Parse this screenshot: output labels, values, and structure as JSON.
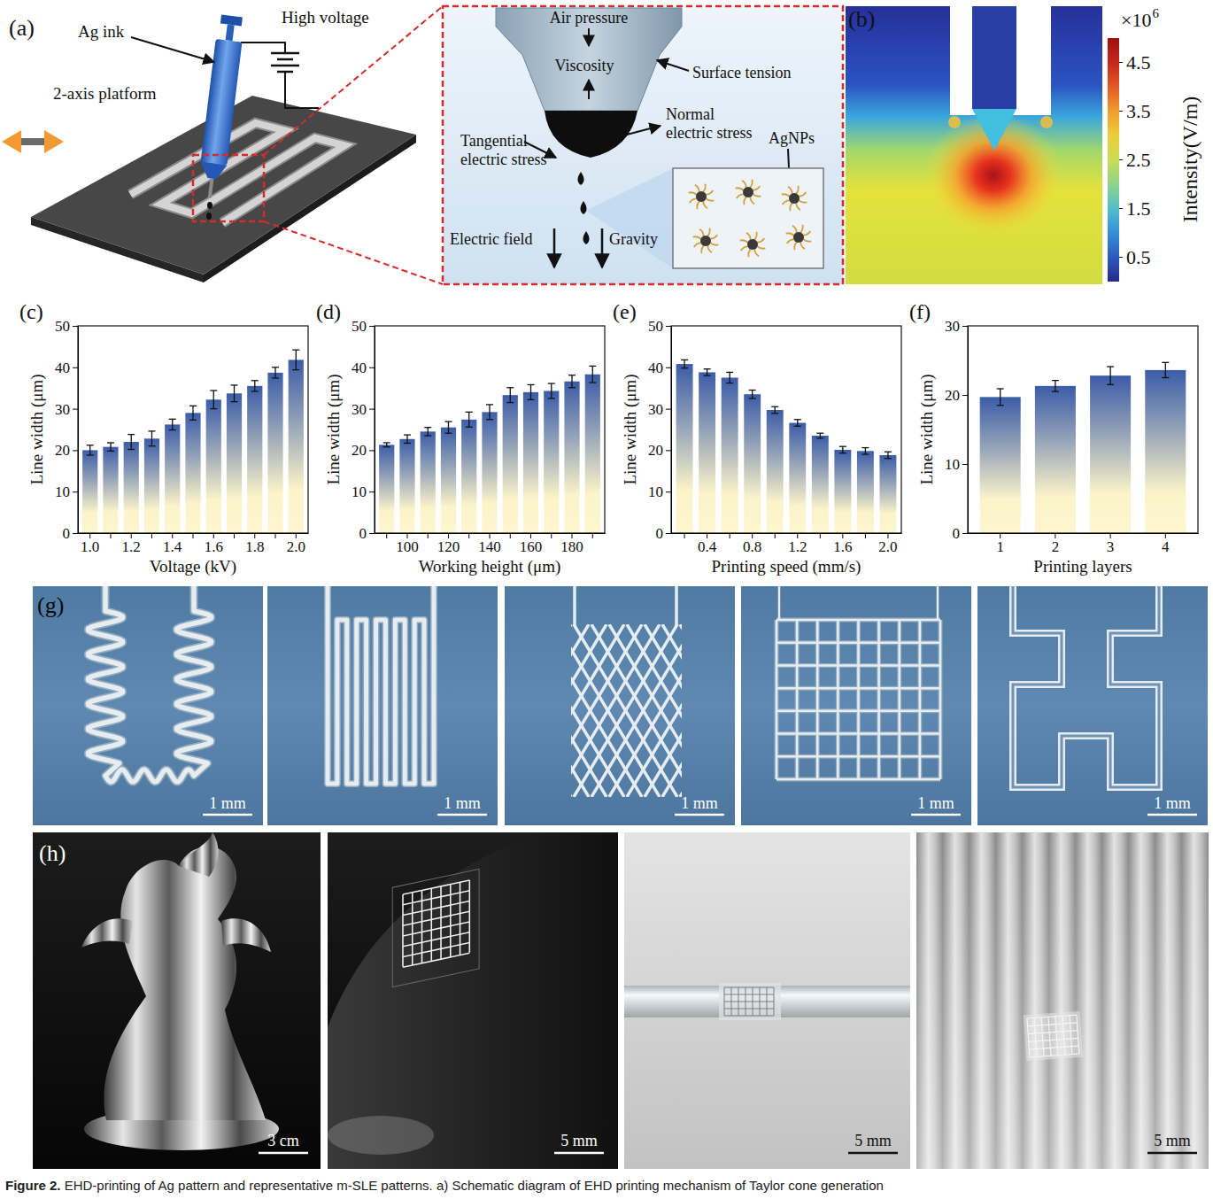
{
  "figure": {
    "caption": {
      "label": "Figure 2.",
      "text": "EHD-printing of Ag pattern and representative m-SLE patterns. a) Schematic diagram of EHD printing mechanism of Taylor cone generation"
    },
    "panels": {
      "a": {
        "letter": "(a)",
        "labels": {
          "ag_ink": "Ag ink",
          "high_voltage": "High voltage",
          "platform": "2-axis platform",
          "air_pressure": "Air pressure",
          "viscosity": "Viscosity",
          "surface_tension": "Surface tension",
          "normal_stress": "Normal electric stress",
          "tangential_stress": "Tangential electric stress",
          "agnps": "AgNPs",
          "electric_field": "Electric field",
          "gravity": "Gravity"
        }
      },
      "b": {
        "letter": "(b)",
        "colorbar": {
          "label": "Intensity(V/m)",
          "multiplier": "×10",
          "exponent": "6",
          "range": [
            0,
            5
          ],
          "ticks": [
            0.5,
            1.5,
            2.5,
            3.5,
            4.5
          ]
        }
      },
      "g": {
        "letter": "(g)",
        "scale_bars": [
          "1 mm",
          "1 mm",
          "1 mm",
          "1 mm",
          "1 mm"
        ]
      },
      "h": {
        "letter": "(h)",
        "scale_bars": [
          "3 cm",
          "5 mm",
          "5 mm",
          "5 mm"
        ]
      }
    }
  },
  "chart_data": [
    {
      "type": "bar",
      "panel_label": "(c)",
      "x_label": "Voltage (kV)",
      "y_label": "Line width (μm)",
      "categories": [
        "1.0",
        null,
        "1.2",
        null,
        "1.4",
        null,
        "1.6",
        null,
        "1.8",
        null,
        "2.0"
      ],
      "values": [
        20.0,
        20.8,
        22.0,
        22.8,
        26.2,
        29.0,
        32.2,
        33.7,
        35.5,
        38.7,
        41.8
      ],
      "errors": [
        1.2,
        1.0,
        1.8,
        1.8,
        1.3,
        1.7,
        2.2,
        2.0,
        1.3,
        1.3,
        2.4
      ],
      "color": "#3b5ca8",
      "ylim": [
        0,
        50
      ],
      "yticks": [
        0,
        10,
        20,
        30,
        40,
        50
      ]
    },
    {
      "type": "bar",
      "panel_label": "(d)",
      "x_label": "Working height (μm)",
      "y_label": "Line width (μm)",
      "categories": [
        null,
        "100",
        null,
        "120",
        null,
        "140",
        null,
        "160",
        null,
        "180",
        null
      ],
      "values": [
        21.3,
        22.7,
        24.5,
        25.5,
        27.4,
        29.2,
        33.3,
        34.0,
        34.3,
        36.6,
        38.3
      ],
      "errors": [
        0.5,
        1.0,
        1.0,
        1.4,
        1.8,
        1.8,
        1.8,
        1.8,
        1.8,
        1.5,
        2.0
      ],
      "color": "#3b5ca8",
      "ylim": [
        0,
        50
      ],
      "yticks": [
        0,
        10,
        20,
        30,
        40,
        50
      ]
    },
    {
      "type": "bar",
      "panel_label": "(e)",
      "x_label": "Printing speed (mm/s)",
      "y_label": "Line width (μm)",
      "categories": [
        null,
        "0.4",
        null,
        "0.8",
        null,
        "1.2",
        null,
        "1.6",
        null,
        "2.0"
      ],
      "values": [
        40.8,
        38.8,
        37.5,
        33.5,
        29.7,
        26.6,
        23.5,
        20.1,
        19.8,
        18.8
      ],
      "errors": [
        1.0,
        0.8,
        1.3,
        1.0,
        0.8,
        0.8,
        0.6,
        0.8,
        0.8,
        0.8
      ],
      "color": "#3b5ca8",
      "ylim": [
        0,
        50
      ],
      "yticks": [
        0,
        10,
        20,
        30,
        40,
        50
      ]
    },
    {
      "type": "bar",
      "panel_label": "(f)",
      "x_label": "Printing layers",
      "y_label": "Line width (μm)",
      "categories": [
        "1",
        "2",
        "3",
        "4"
      ],
      "values": [
        19.7,
        21.3,
        22.8,
        23.6
      ],
      "errors": [
        1.2,
        0.8,
        1.3,
        1.1
      ],
      "color": "#3b5ca8",
      "ylim": [
        0,
        30
      ],
      "yticks": [
        0,
        10,
        20,
        30
      ]
    }
  ]
}
